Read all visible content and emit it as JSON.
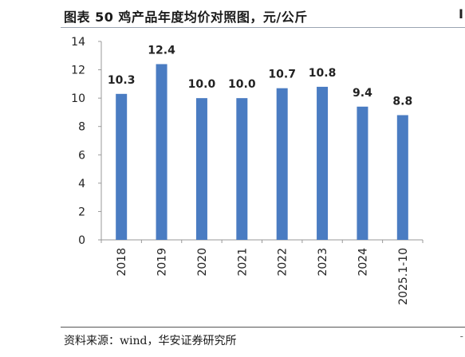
{
  "header": {
    "title": "图表 50 鸡产品年度均价对照图，元/公斤",
    "edge_mark": "I"
  },
  "footer": {
    "source": "资料来源：wind，华安证券研究所",
    "edge_mark": "-"
  },
  "colors": {
    "bar": "#4a7cc2",
    "axis": "#999999",
    "text": "#222222"
  },
  "chart_data": {
    "type": "bar",
    "title": "",
    "xlabel": "",
    "ylabel": "",
    "categories": [
      "2018",
      "2019",
      "2020",
      "2021",
      "2022",
      "2023",
      "2024",
      "2025.1-10"
    ],
    "values": [
      10.3,
      12.4,
      10.0,
      10.0,
      10.7,
      10.8,
      9.4,
      8.8
    ],
    "value_labels": [
      "10.3",
      "12.4",
      "10.0",
      "10.0",
      "10.7",
      "10.8",
      "9.4",
      "8.8"
    ],
    "ylim": [
      0,
      14
    ],
    "yticks": [
      "0",
      "2",
      "4",
      "6",
      "8",
      "10",
      "12",
      "14"
    ],
    "grid": false,
    "legend": "none"
  }
}
